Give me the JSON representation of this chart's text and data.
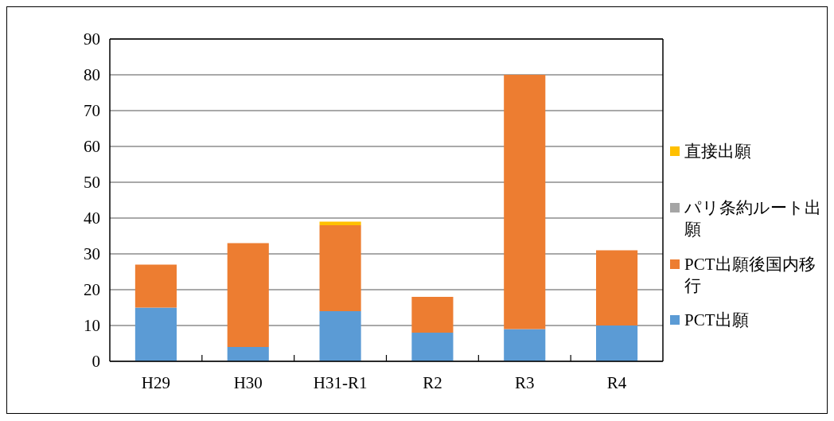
{
  "chart_data": {
    "type": "bar",
    "stacked": true,
    "categories": [
      "H29",
      "H30",
      "H31-R1",
      "R2",
      "R3",
      "R4"
    ],
    "series": [
      {
        "name": "PCT出願",
        "color": "#5b9bd5",
        "values": [
          15,
          4,
          14,
          8,
          9,
          10
        ]
      },
      {
        "name": "PCT出願後国内移行",
        "color": "#ed7d31",
        "values": [
          12,
          29,
          24,
          10,
          71,
          21
        ]
      },
      {
        "name": "パリ条約ルート出願",
        "color": "#a5a5a5",
        "values": [
          0,
          0,
          0,
          0,
          0,
          0
        ]
      },
      {
        "name": "直接出願",
        "color": "#ffc000",
        "values": [
          0,
          0,
          1,
          0,
          0,
          0
        ]
      }
    ],
    "ylim": [
      0,
      90
    ],
    "yticks": [
      0,
      10,
      20,
      30,
      40,
      50,
      60,
      70,
      80,
      90
    ],
    "grid": "y",
    "legend": "right"
  }
}
